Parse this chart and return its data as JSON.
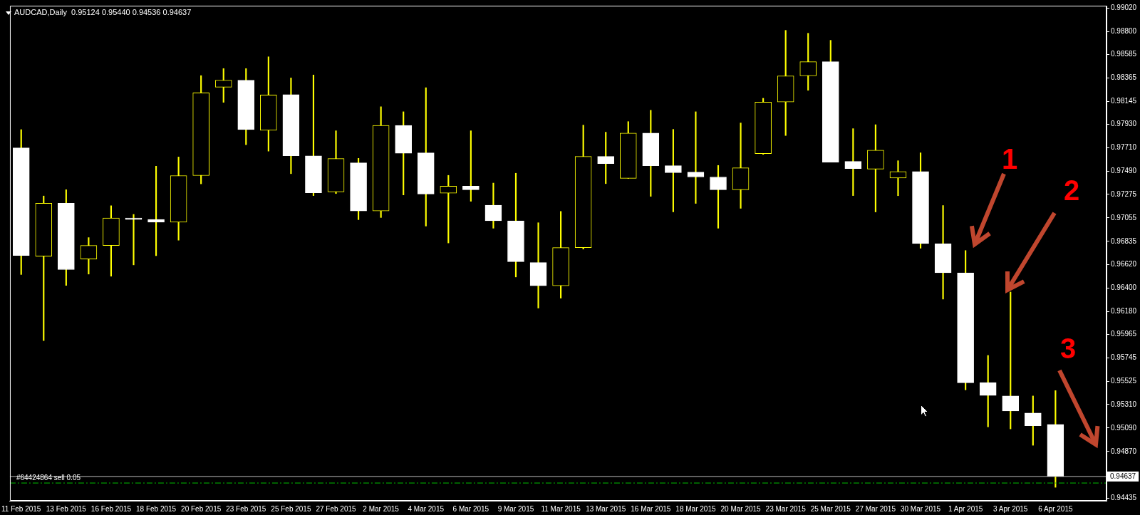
{
  "chart_data": {
    "type": "candlestick",
    "title": "AUDCAD,Daily  0.95124 0.95440 0.94536 0.94637",
    "categories": [
      "11 Feb 2015",
      null,
      "13 Feb 2015",
      null,
      "16 Feb 2015",
      null,
      "18 Feb 2015",
      null,
      "20 Feb 2015",
      null,
      "23 Feb 2015",
      null,
      "25 Feb 2015",
      null,
      "27 Feb 2015",
      null,
      "2 Mar 2015",
      null,
      "4 Mar 2015",
      null,
      "6 Mar 2015",
      null,
      "9 Mar 2015",
      null,
      "11 Mar 2015",
      null,
      "13 Mar 2015",
      null,
      "16 Mar 2015",
      null,
      "18 Mar 2015",
      null,
      "20 Mar 2015",
      null,
      "23 Mar 2015",
      null,
      "25 Mar 2015",
      null,
      "27 Mar 2015",
      null,
      "30 Mar 2015",
      null,
      "1 Apr 2015",
      null,
      "3 Apr 2015",
      null,
      "6 Apr 2015"
    ],
    "ohlc": [
      [
        0.9771,
        0.97881,
        0.96526,
        0.96704
      ],
      [
        0.96698,
        0.9726,
        0.95908,
        0.97193
      ],
      [
        0.97193,
        0.97319,
        0.96424,
        0.96572
      ],
      [
        0.96671,
        0.96871,
        0.9653,
        0.96797
      ],
      [
        0.96797,
        0.97169,
        0.9651,
        0.97055
      ],
      [
        0.97055,
        0.97088,
        0.96616,
        0.97041
      ],
      [
        0.97041,
        0.97539,
        0.96702,
        0.97015
      ],
      [
        0.97015,
        0.97625,
        0.96847,
        0.97451
      ],
      [
        0.97451,
        0.98386,
        0.97374,
        0.98225
      ],
      [
        0.98278,
        0.98452,
        0.98136,
        0.98344
      ],
      [
        0.98344,
        0.98452,
        0.9774,
        0.97881
      ],
      [
        0.97875,
        0.98562,
        0.9768,
        0.98205
      ],
      [
        0.98209,
        0.98364,
        0.97469,
        0.97636
      ],
      [
        0.97636,
        0.98392,
        0.97264,
        0.9729
      ],
      [
        0.97299,
        0.9787,
        0.97283,
        0.9761
      ],
      [
        0.9757,
        0.97612,
        0.97039,
        0.97121
      ],
      [
        0.97121,
        0.98095,
        0.97059,
        0.97921
      ],
      [
        0.97921,
        0.98048,
        0.9727,
        0.9766
      ],
      [
        0.97663,
        0.98273,
        0.96979,
        0.97279
      ],
      [
        0.97286,
        0.97453,
        0.96821,
        0.97352
      ],
      [
        0.97352,
        0.9787,
        0.97211,
        0.97319
      ],
      [
        0.97174,
        0.97381,
        0.96959,
        0.97028
      ],
      [
        0.97028,
        0.97473,
        0.96503,
        0.96645
      ],
      [
        0.96638,
        0.9701,
        0.96212,
        0.9642
      ],
      [
        0.9642,
        0.97116,
        0.96305,
        0.96777
      ],
      [
        0.96777,
        0.97923,
        0.96764,
        0.9763
      ],
      [
        0.9763,
        0.97857,
        0.97376,
        0.97564
      ],
      [
        0.97425,
        0.97956,
        0.97425,
        0.97848
      ],
      [
        0.97848,
        0.98062,
        0.97257,
        0.97544
      ],
      [
        0.97544,
        0.97883,
        0.97112,
        0.97478
      ],
      [
        0.97484,
        0.98048,
        0.97191,
        0.97438
      ],
      [
        0.97438,
        0.97546,
        0.96959,
        0.97319
      ],
      [
        0.97319,
        0.97943,
        0.97145,
        0.97524
      ],
      [
        0.97656,
        0.98174,
        0.9765,
        0.98139
      ],
      [
        0.98139,
        0.98809,
        0.97826,
        0.98384
      ],
      [
        0.98384,
        0.98782,
        0.98249,
        0.98516
      ],
      [
        0.98516,
        0.98716,
        0.97577,
        0.97577
      ],
      [
        0.97584,
        0.9789,
        0.97264,
        0.97517
      ],
      [
        0.97512,
        0.97927,
        0.97111,
        0.97689
      ],
      [
        0.97429,
        0.9759,
        0.97263,
        0.97489
      ],
      [
        0.97489,
        0.97664,
        0.96772,
        0.96815
      ],
      [
        0.96815,
        0.97171,
        0.96296,
        0.96542
      ],
      [
        0.96542,
        0.9675,
        0.95447,
        0.95513
      ],
      [
        0.95516,
        0.95769,
        0.95101,
        0.95395
      ],
      [
        0.9539,
        0.96362,
        0.95082,
        0.9525
      ],
      [
        0.95231,
        0.9539,
        0.94929,
        0.95111
      ],
      [
        0.95124,
        0.9544,
        0.94536,
        0.94637
      ]
    ],
    "color": "#ffff00",
    "colors": [
      "#ffffff",
      "#ffff00",
      "#ffffff",
      "#ffff00",
      "#ffff00",
      "#ffffff",
      "#ffffff",
      "#ffff00",
      "#ffff00",
      "#ffff00",
      "#ffffff",
      "#ffff00",
      "#ffffff",
      "#ffffff",
      "#ffff00",
      "#ffffff",
      "#ffff00",
      "#ffffff",
      "#ffffff",
      "#ffff00",
      "#ffffff",
      "#ffffff",
      "#ffffff",
      "#ffffff",
      "#ffff00",
      "#ffff00",
      "#ffffff",
      "#ffff00",
      "#ffffff",
      "#ffffff",
      "#ffffff",
      "#ffffff",
      "#ffff00",
      "#ffff00",
      "#ffff00",
      "#ffff00",
      "#ffffff",
      "#ffffff",
      "#ffff00",
      "#ffff00",
      "#ffffff",
      "#ffffff",
      "#ffffff",
      "#ffffff",
      "#ffffff",
      "#ffffff",
      "#ffffff"
    ],
    "ylim": [
      0.9441,
      0.9904
    ],
    "yticks": [
      {
        "value": 0.9902,
        "label": "0.99020"
      },
      {
        "value": 0.988,
        "label": "0.98800"
      },
      {
        "value": 0.98585,
        "label": "0.98585"
      },
      {
        "value": 0.98365,
        "label": "0.98365"
      },
      {
        "value": 0.98145,
        "label": "0.98145"
      },
      {
        "value": 0.9793,
        "label": "0.97930"
      },
      {
        "value": 0.9771,
        "label": "0.97710"
      },
      {
        "value": 0.9749,
        "label": "0.97490"
      },
      {
        "value": 0.97275,
        "label": "0.97275"
      },
      {
        "value": 0.97055,
        "label": "0.97055"
      },
      {
        "value": 0.96835,
        "label": "0.96835"
      },
      {
        "value": 0.9662,
        "label": "0.96620"
      },
      {
        "value": 0.964,
        "label": "0.96400"
      },
      {
        "value": 0.9618,
        "label": "0.96180"
      },
      {
        "value": 0.95965,
        "label": "0.95965"
      },
      {
        "value": 0.95745,
        "label": "0.95745"
      },
      {
        "value": 0.95525,
        "label": "0.95525"
      },
      {
        "value": 0.9531,
        "label": "0.95310"
      },
      {
        "value": 0.9509,
        "label": "0.95090"
      },
      {
        "value": 0.9487,
        "label": "0.94870"
      },
      {
        "value": 0.94435,
        "label": "0.94435"
      }
    ],
    "ref_lines": [
      {
        "axis": "y",
        "value": 0.94637,
        "label": "0.94637",
        "color": "#c0c0c0",
        "line_style": "solid"
      },
      {
        "axis": "y",
        "value": 0.94576,
        "label": "#64424864 sell 0.05",
        "color": "#00c000",
        "line_style": "dashed"
      }
    ],
    "annotations": [
      "1",
      "2",
      "3"
    ],
    "grid": false,
    "legend": false
  }
}
